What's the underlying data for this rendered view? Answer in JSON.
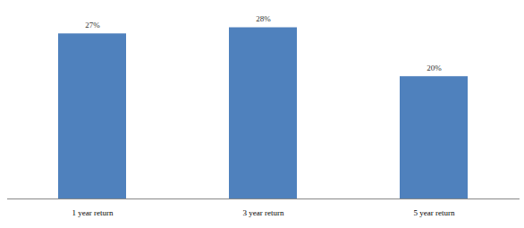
{
  "chart_data": {
    "type": "bar",
    "categories": [
      "1 year return",
      "3 year return",
      "5 year return"
    ],
    "values": [
      27,
      28,
      20
    ],
    "value_labels": [
      "27%",
      "28%",
      "20%"
    ],
    "color": "#4f81bd",
    "ylim": [
      0,
      31
    ],
    "data_labels": true,
    "tick_labels": "x"
  }
}
